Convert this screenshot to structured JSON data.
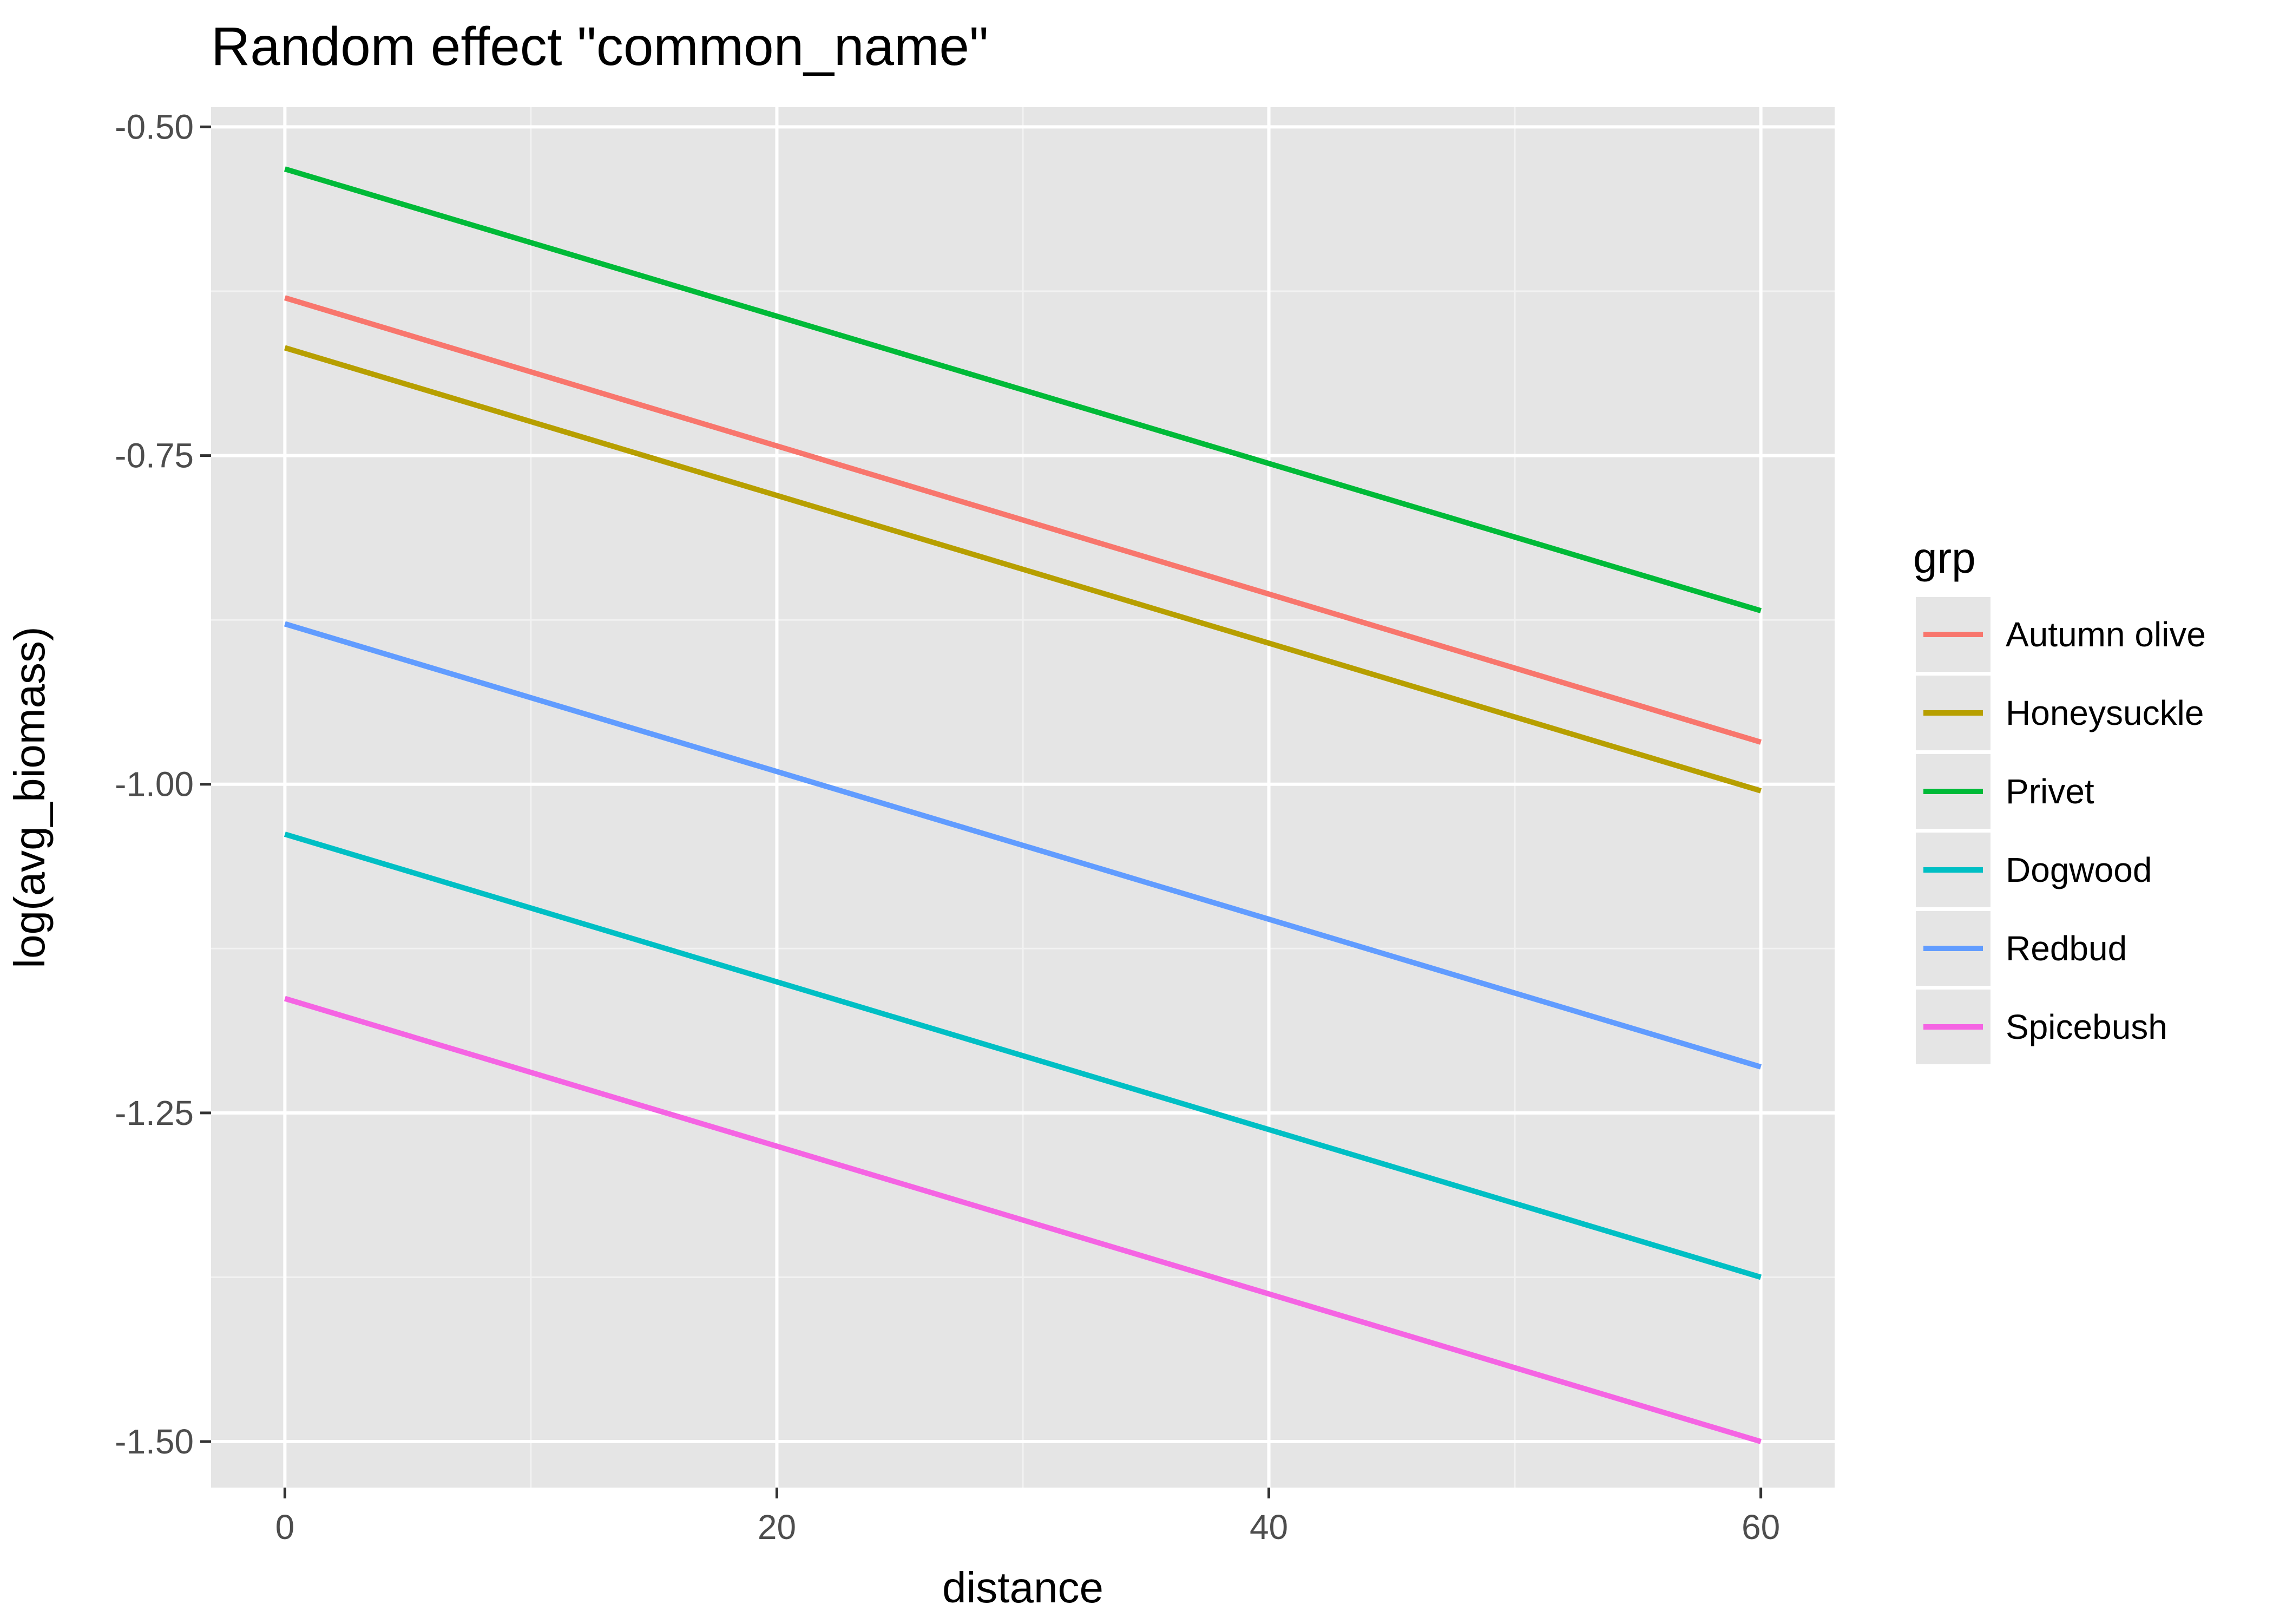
{
  "chart_data": {
    "type": "line",
    "title": "Random effect \"common_name\"",
    "xlabel": "distance",
    "ylabel": "log(avg_biomass)",
    "xlim": [
      -3,
      63
    ],
    "ylim": [
      -1.535,
      -0.485
    ],
    "x_ticks": [
      0,
      20,
      40,
      60
    ],
    "y_ticks": [
      -0.5,
      -0.75,
      -1.0,
      -1.25,
      -1.5
    ],
    "x_tick_labels": [
      "0",
      "20",
      "40",
      "60"
    ],
    "y_tick_labels": [
      "-0.50",
      "-0.75",
      "-1.00",
      "-1.25",
      "-1.50"
    ],
    "grid": true,
    "legend": {
      "title": "grp",
      "position": "right"
    },
    "series": [
      {
        "name": "Autumn olive",
        "color": "#F8766D",
        "x": [
          0,
          60
        ],
        "y": [
          -0.63,
          -0.968
        ]
      },
      {
        "name": "Honeysuckle",
        "color": "#B79F00",
        "x": [
          0,
          60
        ],
        "y": [
          -0.668,
          -1.005
        ]
      },
      {
        "name": "Privet",
        "color": "#00BA38",
        "x": [
          0,
          60
        ],
        "y": [
          -0.532,
          -0.868
        ]
      },
      {
        "name": "Dogwood",
        "color": "#00BFC4",
        "x": [
          0,
          60
        ],
        "y": [
          -1.038,
          -1.375
        ]
      },
      {
        "name": "Redbud",
        "color": "#619CFF",
        "x": [
          0,
          60
        ],
        "y": [
          -0.878,
          -1.215
        ]
      },
      {
        "name": "Spicebush",
        "color": "#F564E3",
        "x": [
          0,
          60
        ],
        "y": [
          -1.163,
          -1.5
        ]
      }
    ]
  }
}
